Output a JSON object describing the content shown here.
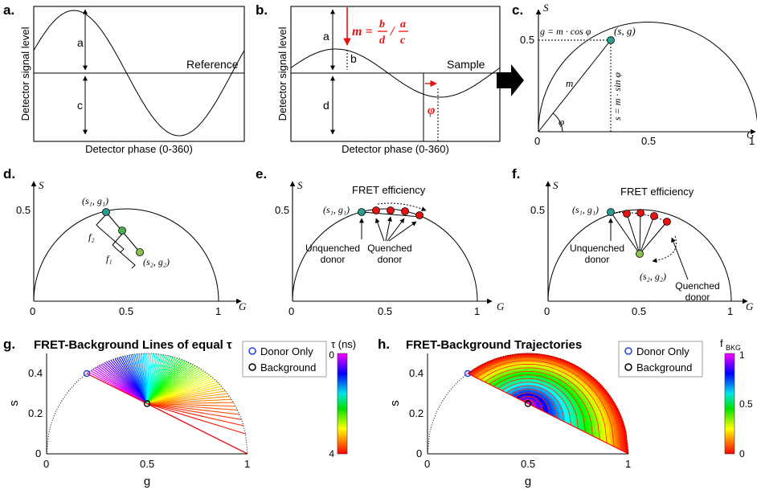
{
  "colors": {
    "teal": "#2a9d8f",
    "green": "#8bc34a",
    "red": "#e8120f",
    "blue": "#1f3fe0",
    "accent_red": "#e8120f"
  },
  "panels": {
    "a": {
      "label": "a.",
      "ylabel": "Detector signal level",
      "xlabel": "Detector phase (0-360)",
      "ref_label": "Reference",
      "amp_a": "a",
      "amp_c": "c"
    },
    "b": {
      "label": "b.",
      "ylabel": "Detector signal level",
      "xlabel": "Detector phase (0-360)",
      "sample_label": "Sample",
      "amp_a": "a",
      "amp_b": "b",
      "amp_d": "d",
      "m_formula": "m = b/d / a/c",
      "phi": "φ"
    },
    "c": {
      "label": "c.",
      "s_axis": "S",
      "g_axis": "G",
      "tick_05_y": "0.5",
      "tick_0": "0",
      "tick_05_x": "0.5",
      "tick_1": "1",
      "point": "(s, g)",
      "g_eq": "g = m · cos φ",
      "s_eq": "s = m · sin φ",
      "m": "m",
      "phi": "φ"
    },
    "d": {
      "label": "d.",
      "s_axis": "S",
      "g_axis": "G",
      "tick_05_y": "0.5",
      "tick_0": "0",
      "tick_05_x": "0.5",
      "tick_1": "1",
      "p1": "(s₁, g₁)",
      "p2": "(s₂, g₂)",
      "f1": "f₁",
      "f2": "f₂"
    },
    "e": {
      "label": "e.",
      "s_axis": "S",
      "g_axis": "G",
      "tick_05_y": "0.5",
      "tick_0": "0",
      "tick_05_x": "0.5",
      "tick_1": "1",
      "p1": "(s₁, g₁)",
      "fret": "FRET efficiency",
      "unq1": "Unquenched",
      "unq2": "donor",
      "q1": "Quenched",
      "q2": "donor"
    },
    "f": {
      "label": "f.",
      "s_axis": "S",
      "g_axis": "G",
      "tick_05_y": "0.5",
      "tick_0": "0",
      "tick_05_x": "0.5",
      "tick_1": "1",
      "p1": "(s₁, g₁)",
      "p2": "(s₂, g₂)",
      "fret": "FRET efficiency",
      "unq1": "Unquenched",
      "unq2": "donor",
      "q1": "Quenched",
      "q2": "donor"
    },
    "g": {
      "label": "g.",
      "title": "FRET-Background Lines of equal τ",
      "xlabel": "g",
      "ylabel": "s",
      "yticks": [
        "0",
        "0.2",
        "0.4"
      ],
      "xticks": [
        "0",
        "0.5",
        "1"
      ],
      "legend": [
        "Donor Only",
        "Background"
      ],
      "cbar_title": "τ (ns)",
      "cbar_top": "0",
      "cbar_bottom": "4"
    },
    "h": {
      "label": "h.",
      "title": "FRET-Background Trajectories",
      "xlabel": "g",
      "ylabel": "s",
      "yticks": [
        "0",
        "0.2",
        "0.4"
      ],
      "xticks": [
        "0",
        "0.5",
        "1"
      ],
      "legend": [
        "Donor Only",
        "Background"
      ],
      "cbar_title": "f",
      "cbar_sub": "BKG",
      "cbar_ticks": [
        "1",
        "0.5",
        "0"
      ]
    }
  }
}
